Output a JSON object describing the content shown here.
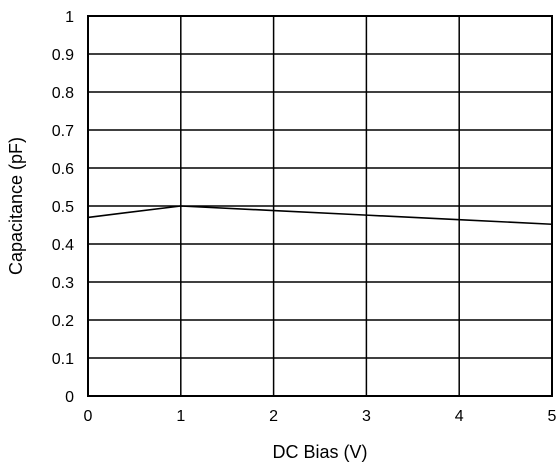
{
  "chart_data": {
    "type": "line",
    "title": "",
    "xlabel": "DC Bias (V)",
    "ylabel": "Capacitance (pF)",
    "xlim": [
      0,
      5
    ],
    "ylim": [
      0,
      1
    ],
    "x_ticks": [
      "0",
      "1",
      "2",
      "3",
      "4",
      "5"
    ],
    "y_ticks": [
      "0",
      "0.1",
      "0.2",
      "0.3",
      "0.4",
      "0.5",
      "0.6",
      "0.7",
      "0.8",
      "0.9",
      "1"
    ],
    "grid": true,
    "legend": "none",
    "series": [
      {
        "x": [
          0,
          1,
          2,
          3,
          4,
          5
        ],
        "values": [
          0.47,
          0.5,
          0.488,
          0.476,
          0.464,
          0.452
        ]
      }
    ],
    "colors": {
      "line": "#000000",
      "grid": "#000000",
      "background": "#ffffff"
    }
  }
}
